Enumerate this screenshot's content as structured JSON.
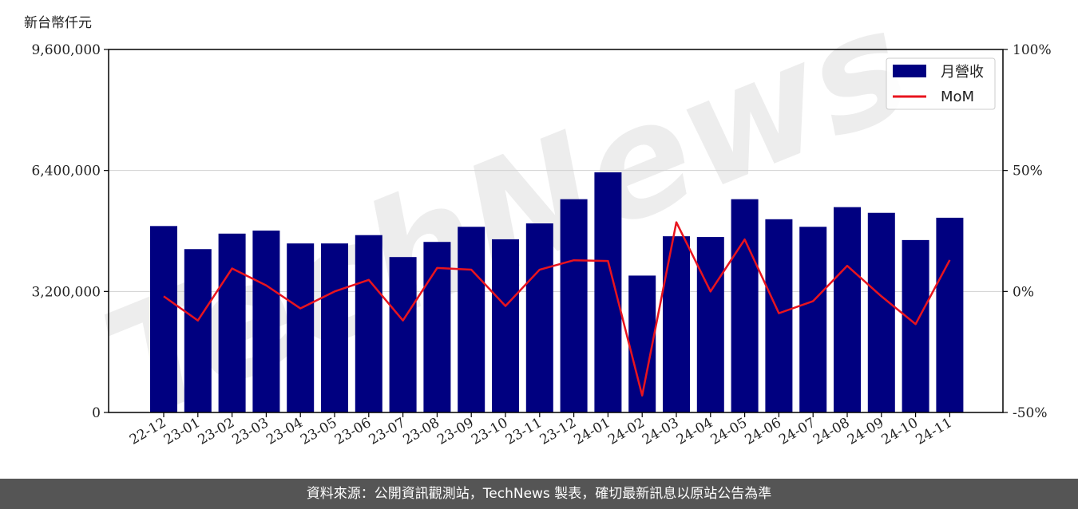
{
  "chart_data": {
    "type": "bar+line",
    "unit_label": "新台幣仟元",
    "categories": [
      "22-12",
      "23-01",
      "23-02",
      "23-03",
      "23-04",
      "23-05",
      "23-06",
      "23-07",
      "23-08",
      "23-09",
      "23-10",
      "23-11",
      "23-12",
      "24-01",
      "24-02",
      "24-03",
      "24-04",
      "24-05",
      "24-06",
      "24-07",
      "24-08",
      "24-09",
      "24-10",
      "24-11"
    ],
    "series": [
      {
        "name": "月營收",
        "axis": "left",
        "kind": "bar",
        "color": "#000080",
        "values": [
          4930000,
          4320000,
          4730000,
          4810000,
          4470000,
          4470000,
          4690000,
          4110000,
          4510000,
          4910000,
          4580000,
          5000000,
          5640000,
          6350000,
          3620000,
          4660000,
          4640000,
          5640000,
          5110000,
          4910000,
          5430000,
          5280000,
          4560000,
          5150000
        ]
      },
      {
        "name": "MoM",
        "axis": "right",
        "kind": "line",
        "color": "#e8141e",
        "values": [
          -2,
          -12,
          9.5,
          2.5,
          -7,
          0,
          4.8,
          -12,
          9.7,
          9,
          -6,
          9,
          12.9,
          12.6,
          -43,
          28.6,
          0,
          21.5,
          -9,
          -4,
          10.6,
          -2,
          -13.5,
          13
        ]
      }
    ],
    "y_left": {
      "min": 0,
      "max": 9600000,
      "ticks": [
        "0",
        "3,200,000",
        "6,400,000",
        "9,600,000"
      ]
    },
    "y_right": {
      "min": -50,
      "max": 100,
      "ticks": [
        "-50%",
        "0%",
        "50%",
        "100%"
      ]
    },
    "grid": "horizontal",
    "legend_placement": "top-right"
  },
  "footer": {
    "text": "資料來源：公開資訊觀測站，TechNews 製表，確切最新訊息以原站公告為準"
  },
  "watermark": {
    "text": "TechNews"
  }
}
